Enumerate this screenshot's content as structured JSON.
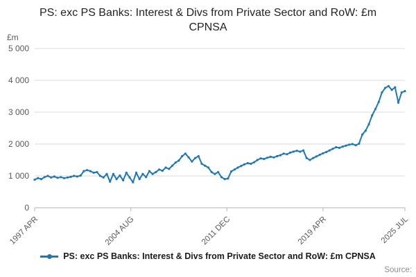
{
  "title": "PS: exc PS Banks: Interest & Divs from Private Sector and RoW: £m CPNSA",
  "source_label": "Source:",
  "legend": {
    "label": "PS: exc PS Banks: Interest & Divs from Private Sector and RoW: £m CPNSA"
  },
  "chart_data": {
    "type": "line",
    "title": "PS: exc PS Banks: Interest & Divs from Private Sector and RoW: £m CPNSA",
    "xlabel": "",
    "ylabel": "£m",
    "xlim": [
      1997.25,
      2025.5
    ],
    "ylim": [
      0,
      5000
    ],
    "grid": "horizontal",
    "legend_position": "bottom",
    "x_start": 1997.25,
    "x_step": 0.25,
    "x_unit": "quarterly (year fraction)",
    "values": [
      880,
      930,
      900,
      960,
      1000,
      950,
      980,
      940,
      960,
      930,
      950,
      970,
      1000,
      980,
      1010,
      1150,
      1180,
      1150,
      1100,
      1120,
      1000,
      950,
      1060,
      820,
      1060,
      900,
      1010,
      860,
      1100,
      950,
      800,
      1100,
      900,
      1060,
      960,
      1150,
      1060,
      1120,
      1200,
      1160,
      1260,
      1220,
      1320,
      1420,
      1480,
      1620,
      1700,
      1580,
      1450,
      1560,
      1620,
      1380,
      1320,
      1260,
      1120,
      1060,
      1120,
      960,
      900,
      920,
      1140,
      1200,
      1260,
      1310,
      1360,
      1400,
      1380,
      1430,
      1500,
      1550,
      1530,
      1570,
      1600,
      1580,
      1620,
      1650,
      1700,
      1680,
      1730,
      1760,
      1790,
      1760,
      1800,
      1560,
      1500,
      1560,
      1610,
      1660,
      1710,
      1750,
      1800,
      1850,
      1900,
      1880,
      1920,
      1950,
      1980,
      2000,
      1960,
      2010,
      2300,
      2420,
      2620,
      2900,
      3100,
      3320,
      3620,
      3760,
      3820,
      3700,
      3780,
      3300,
      3620,
      3660
    ],
    "y_ticks": [
      {
        "value": 0,
        "label": "0"
      },
      {
        "value": 1000,
        "label": "1 000"
      },
      {
        "value": 2000,
        "label": "2 000"
      },
      {
        "value": 3000,
        "label": "3 000"
      },
      {
        "value": 4000,
        "label": "4 000"
      },
      {
        "value": 5000,
        "label": "5 000"
      }
    ],
    "x_ticks": [
      {
        "value": 1997.25,
        "label": "1997 APR"
      },
      {
        "value": 2004.583,
        "label": "2004 AUG"
      },
      {
        "value": 2011.917,
        "label": "2011 DEC"
      },
      {
        "value": 2019.25,
        "label": "2019 APR"
      },
      {
        "value": 2025.5,
        "label": "2025 JUL"
      }
    ],
    "colors": {
      "line": "#1f77b4",
      "grid": "#d9d9d9",
      "axis": "#b3b3b3",
      "tick_text": "#595959"
    }
  }
}
